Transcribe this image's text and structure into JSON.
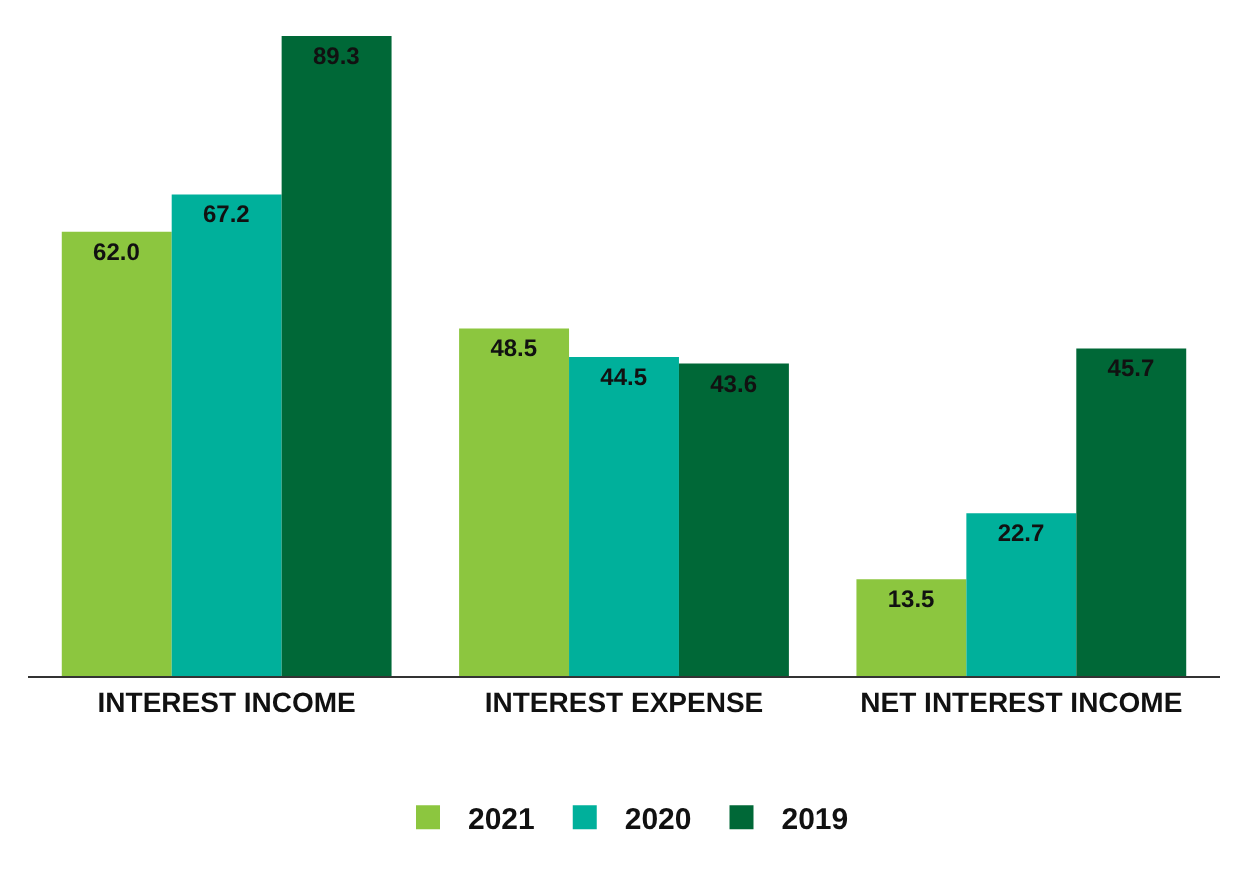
{
  "chart_data": {
    "type": "bar",
    "categories": [
      "INTEREST INCOME",
      "INTEREST EXPENSE",
      "NET INTEREST INCOME"
    ],
    "series": [
      {
        "name": "2021",
        "color": "#8cc63f",
        "values": [
          62.0,
          48.5,
          13.5
        ],
        "value_labels": [
          "62.0",
          "48.5",
          "13.5"
        ]
      },
      {
        "name": "2020",
        "color": "#00b09b",
        "values": [
          67.2,
          44.5,
          22.7
        ],
        "value_labels": [
          "67.2",
          "44.5",
          "22.7"
        ]
      },
      {
        "name": "2019",
        "color": "#006837",
        "values": [
          89.3,
          43.6,
          45.7
        ],
        "value_labels": [
          "89.3",
          "43.6",
          "45.7"
        ]
      }
    ],
    "legend": "bottom"
  }
}
